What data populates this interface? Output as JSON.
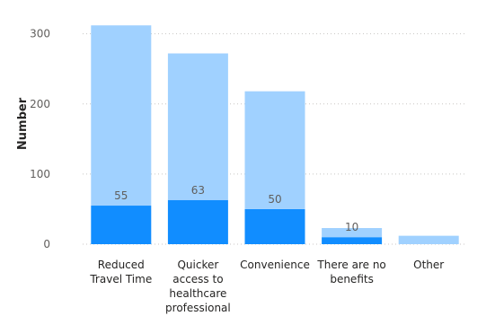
{
  "chart_data": {
    "type": "bar",
    "stacked": true,
    "categories": [
      [
        "Reduced",
        "Travel Time"
      ],
      [
        "Quicker",
        "access to",
        "healthcare",
        "professional"
      ],
      [
        "Convenience"
      ],
      [
        "There are no",
        "benefits"
      ],
      [
        "Other"
      ]
    ],
    "series": [
      {
        "values": [
          55,
          63,
          50,
          10,
          0
        ],
        "color": "#118dff",
        "labels": [
          "55",
          "63",
          "50",
          "10",
          ""
        ]
      },
      {
        "values": [
          257,
          209,
          168,
          13,
          12
        ],
        "color": "#a0d1ff"
      }
    ],
    "ylabel": "Number",
    "ylim": [
      0,
      320
    ],
    "yticks": [
      0,
      100,
      200,
      300
    ],
    "grid": true
  }
}
